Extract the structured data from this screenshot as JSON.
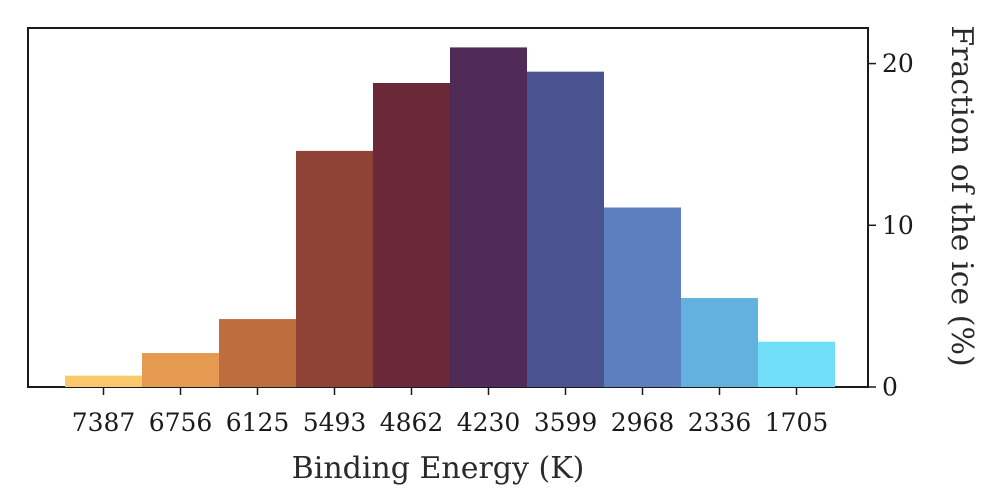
{
  "chart_data": {
    "type": "bar",
    "categories": [
      "7387",
      "6756",
      "6125",
      "5493",
      "4862",
      "4230",
      "3599",
      "2968",
      "2336",
      "1705"
    ],
    "values": [
      0.7,
      2.1,
      4.2,
      14.6,
      18.8,
      21.0,
      19.5,
      11.1,
      5.5,
      2.8
    ],
    "colors": [
      "#f9c86b",
      "#e49a50",
      "#bd6d3e",
      "#8f4337",
      "#6a2839",
      "#512b58",
      "#4a5290",
      "#5b7fbf",
      "#62b1df",
      "#71def7"
    ],
    "xlabel": "Binding Energy (K)",
    "ylabel": "Fraction of the ice (%)",
    "ylim": [
      0,
      22.2
    ],
    "yticks": [
      0,
      10,
      20
    ],
    "ytick_labels": [
      "0",
      "10",
      "20"
    ],
    "y_axis_side": "right",
    "grid": false,
    "legend": false
  }
}
